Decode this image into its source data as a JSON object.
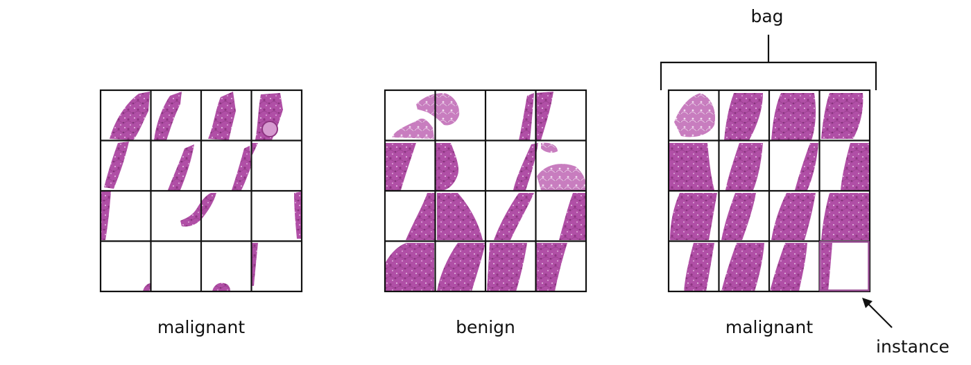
{
  "figure": {
    "grids": [
      {
        "id": "grid-1",
        "label": "malignant"
      },
      {
        "id": "grid-2",
        "label": "benign"
      },
      {
        "id": "grid-3",
        "label": "malignant"
      }
    ],
    "bag_label": "bag",
    "instance_label": "instance"
  },
  "colors": {
    "tissue": "#b04fa6",
    "tissue_dark": "#8e3582",
    "tissue_light": "#cf86c6",
    "grid_line": "#111111",
    "background": "#ffffff"
  }
}
